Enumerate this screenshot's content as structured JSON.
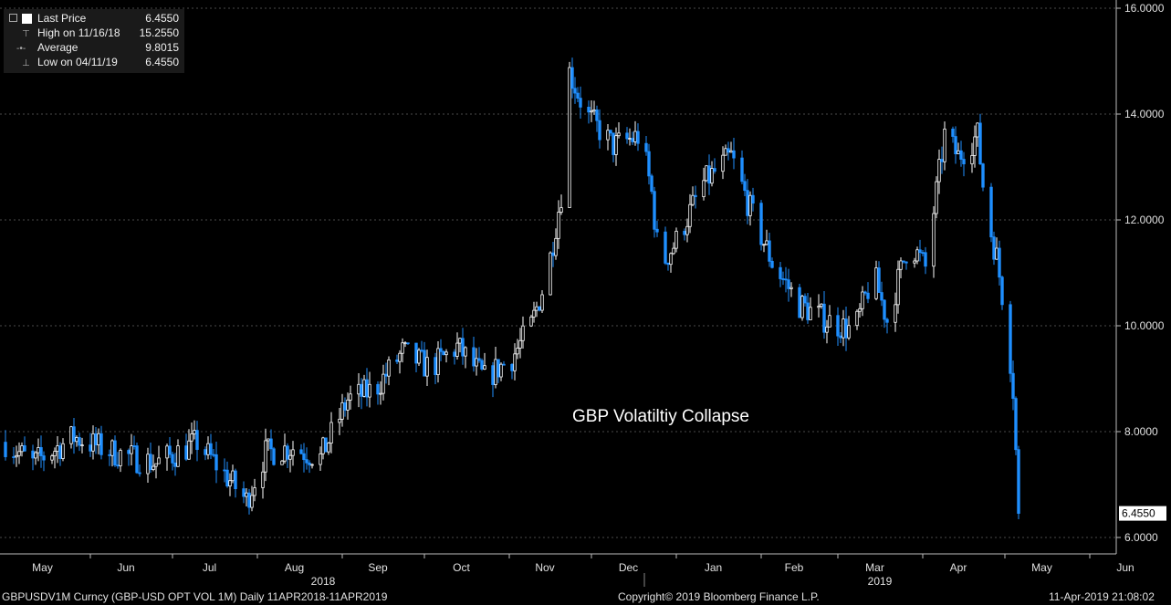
{
  "chart_data": {
    "type": "candlestick",
    "title": "GBP Volatiltiy Collapse",
    "ylim": [
      5.6,
      16.0
    ],
    "yticks": [
      6.0,
      8.0,
      10.0,
      12.0,
      14.0,
      16.0
    ],
    "ytick_labels": [
      "6.0000",
      "8.0000",
      "10.0000",
      "12.0000",
      "14.0000",
      "16.0000"
    ],
    "month_labels": [
      "May",
      "Jun",
      "Jul",
      "Aug",
      "Sep",
      "Oct",
      "Nov",
      "Dec",
      "Jan",
      "Feb",
      "Mar",
      "Apr",
      "May",
      "Jun"
    ],
    "year_labels": [
      "2018",
      "2019"
    ],
    "last_price_label": "6.4550",
    "keypoints": [
      {
        "d": 0,
        "v": 7.8
      },
      {
        "d": 10,
        "v": 7.4
      },
      {
        "d": 25,
        "v": 7.9
      },
      {
        "d": 40,
        "v": 7.6
      },
      {
        "d": 55,
        "v": 7.4
      },
      {
        "d": 70,
        "v": 7.8
      },
      {
        "d": 80,
        "v": 7.2
      },
      {
        "d": 88,
        "v": 6.7
      },
      {
        "d": 95,
        "v": 7.6
      },
      {
        "d": 105,
        "v": 7.7
      },
      {
        "d": 115,
        "v": 7.5
      },
      {
        "d": 125,
        "v": 8.6
      },
      {
        "d": 135,
        "v": 8.8
      },
      {
        "d": 145,
        "v": 9.5
      },
      {
        "d": 155,
        "v": 9.2
      },
      {
        "d": 165,
        "v": 9.6
      },
      {
        "d": 175,
        "v": 9.0
      },
      {
        "d": 185,
        "v": 9.4
      },
      {
        "d": 192,
        "v": 10.0
      },
      {
        "d": 198,
        "v": 11.0
      },
      {
        "d": 203,
        "v": 12.5
      },
      {
        "d": 206,
        "v": 14.8
      },
      {
        "d": 212,
        "v": 14.0
      },
      {
        "d": 222,
        "v": 13.4
      },
      {
        "d": 232,
        "v": 13.6
      },
      {
        "d": 236,
        "v": 12.5
      },
      {
        "d": 239,
        "v": 11.1
      },
      {
        "d": 245,
        "v": 11.6
      },
      {
        "d": 255,
        "v": 12.7
      },
      {
        "d": 265,
        "v": 13.2
      },
      {
        "d": 272,
        "v": 12.2
      },
      {
        "d": 280,
        "v": 11.2
      },
      {
        "d": 290,
        "v": 10.4
      },
      {
        "d": 300,
        "v": 10.1
      },
      {
        "d": 310,
        "v": 9.9
      },
      {
        "d": 317,
        "v": 11.0
      },
      {
        "d": 322,
        "v": 10.1
      },
      {
        "d": 330,
        "v": 11.6
      },
      {
        "d": 336,
        "v": 11.1
      },
      {
        "d": 343,
        "v": 13.6
      },
      {
        "d": 348,
        "v": 13.2
      },
      {
        "d": 355,
        "v": 13.6
      },
      {
        "d": 358,
        "v": 12.2
      },
      {
        "d": 362,
        "v": 11.3
      },
      {
        "d": 366,
        "v": 9.9
      },
      {
        "d": 368,
        "v": 8.8
      },
      {
        "d": 370,
        "v": 6.455
      }
    ],
    "legend": {
      "last_price": {
        "label": "Last Price",
        "value": "6.4550"
      },
      "high": {
        "label": "High on 11/16/18",
        "value": "15.2550"
      },
      "average": {
        "label": "Average",
        "value": "9.8015"
      },
      "low": {
        "label": "Low on 04/11/19",
        "value": "6.4550"
      }
    }
  },
  "footer": {
    "left": "GBPUSDV1M Curncy (GBP-USD OPT VOL 1M)  Daily 11APR2018-11APR2019",
    "center": "Copyright© 2019 Bloomberg Finance L.P.",
    "right": "11-Apr-2019 21:08:02"
  },
  "colors": {
    "up": "#ffffff",
    "down": "#1f8fff",
    "grid": "#4a4a4a",
    "background": "#000000"
  }
}
